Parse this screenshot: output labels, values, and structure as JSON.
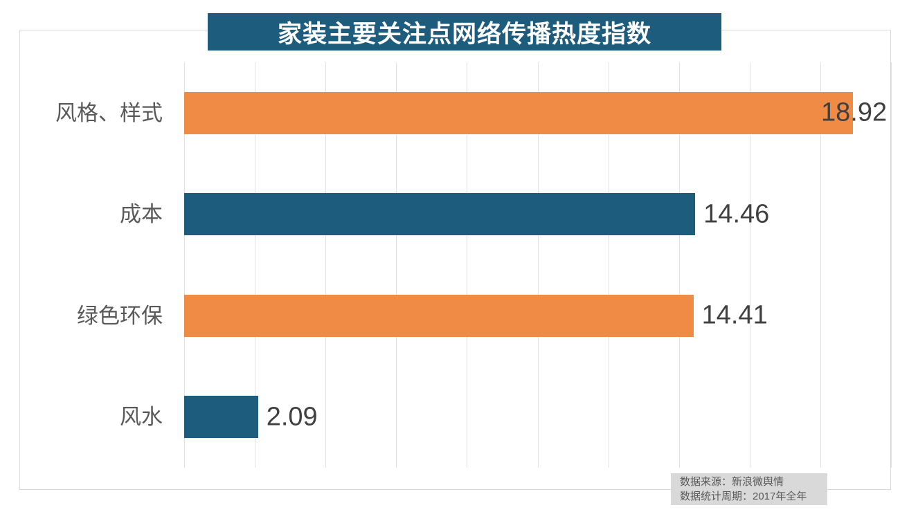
{
  "title": {
    "text": "家装主要关注点网络传播热度指数"
  },
  "chart_data": {
    "type": "bar",
    "orientation": "horizontal",
    "title": "家装主要关注点网络传播热度指数",
    "categories": [
      "风格、样式",
      "成本",
      "绿色环保",
      "风水"
    ],
    "values": [
      18.92,
      14.46,
      14.41,
      2.09
    ],
    "data_labels": [
      "18.92",
      "14.46",
      "14.41",
      "2.09"
    ],
    "bar_colors": [
      "#EF8B45",
      "#1E5C7E",
      "#EF8B45",
      "#1E5C7E"
    ],
    "xlim": [
      0,
      20
    ],
    "x_tick_step": 2,
    "grid": "vertical-only",
    "legend": "none",
    "value_label_position": "outside-end-clamped"
  },
  "colors": {
    "accent_orange": "#EF8B45",
    "accent_teal": "#1E5C7E",
    "banner_bg": "#1E5C7E",
    "banner_text": "#FFFFFF",
    "gridline": "#E1E1E1",
    "outer_border": "#D9D9D9",
    "category_text": "#595959",
    "value_text": "#404040",
    "footer_bg": "#D9D9D9",
    "footer_text": "#595959"
  },
  "footer": {
    "source_line": "数据来源：新浪微舆情",
    "period_line": "数据统计周期：2017年全年"
  }
}
